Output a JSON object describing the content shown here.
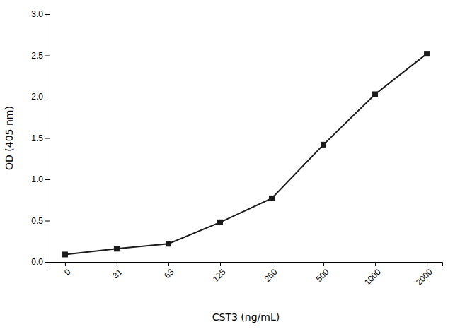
{
  "chart_data": {
    "type": "line",
    "xlabel": "CST3 (ng/mL)",
    "ylabel": "OD (405 nm)",
    "categories": [
      "0",
      "31",
      "63",
      "125",
      "250",
      "500",
      "1000",
      "2000"
    ],
    "values": [
      0.09,
      0.16,
      0.22,
      0.48,
      0.77,
      1.42,
      2.03,
      2.52
    ],
    "color": "#1a1a1a",
    "marker": "square",
    "ylim": [
      0.0,
      3.0
    ],
    "yticks": [
      {
        "value": 0.0,
        "label": "0.0"
      },
      0.5,
      {
        "value": 1.0,
        "label": "1.0"
      },
      1.5,
      {
        "value": 2.0,
        "label": "2.0"
      },
      2.5,
      {
        "value": 3.0,
        "label": "3.0"
      }
    ],
    "grid": false
  }
}
